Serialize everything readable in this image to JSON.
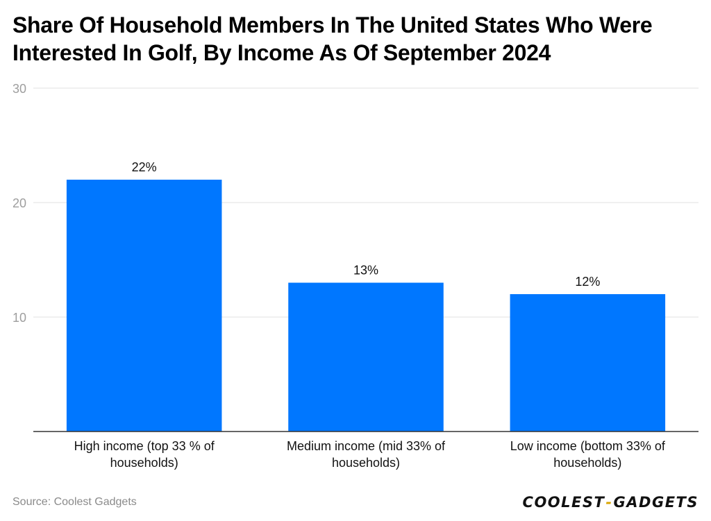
{
  "header": {
    "title": "Share Of Household Members In The United States Who Were Interested In Golf, By Income As Of September 2024"
  },
  "footer": {
    "source": "Source: Coolest Gadgets",
    "logo_left": "COOLEST",
    "logo_sep": "-",
    "logo_right": "GADGETS"
  },
  "colors": {
    "bar": "#0077ff",
    "grid": "#e2e2e2",
    "axis": "#333333"
  },
  "chart_data": {
    "type": "bar",
    "title": "Share Of Household Members In The United States Who Were Interested In Golf, By Income As Of September 2024",
    "categories": [
      [
        "High income (top 33 % of",
        "households)"
      ],
      [
        "Medium income (mid 33% of",
        "households)"
      ],
      [
        "Low income (bottom 33% of",
        "households)"
      ]
    ],
    "values": [
      22,
      13,
      12
    ],
    "data_labels": [
      "22%",
      "13%",
      "12%"
    ],
    "yticks": [
      10,
      20,
      30
    ],
    "ytick_labels": [
      "10",
      "20",
      "30"
    ],
    "ylim": [
      0,
      30
    ],
    "xlabel": "",
    "ylabel": "",
    "grid": true,
    "legend": "none"
  }
}
